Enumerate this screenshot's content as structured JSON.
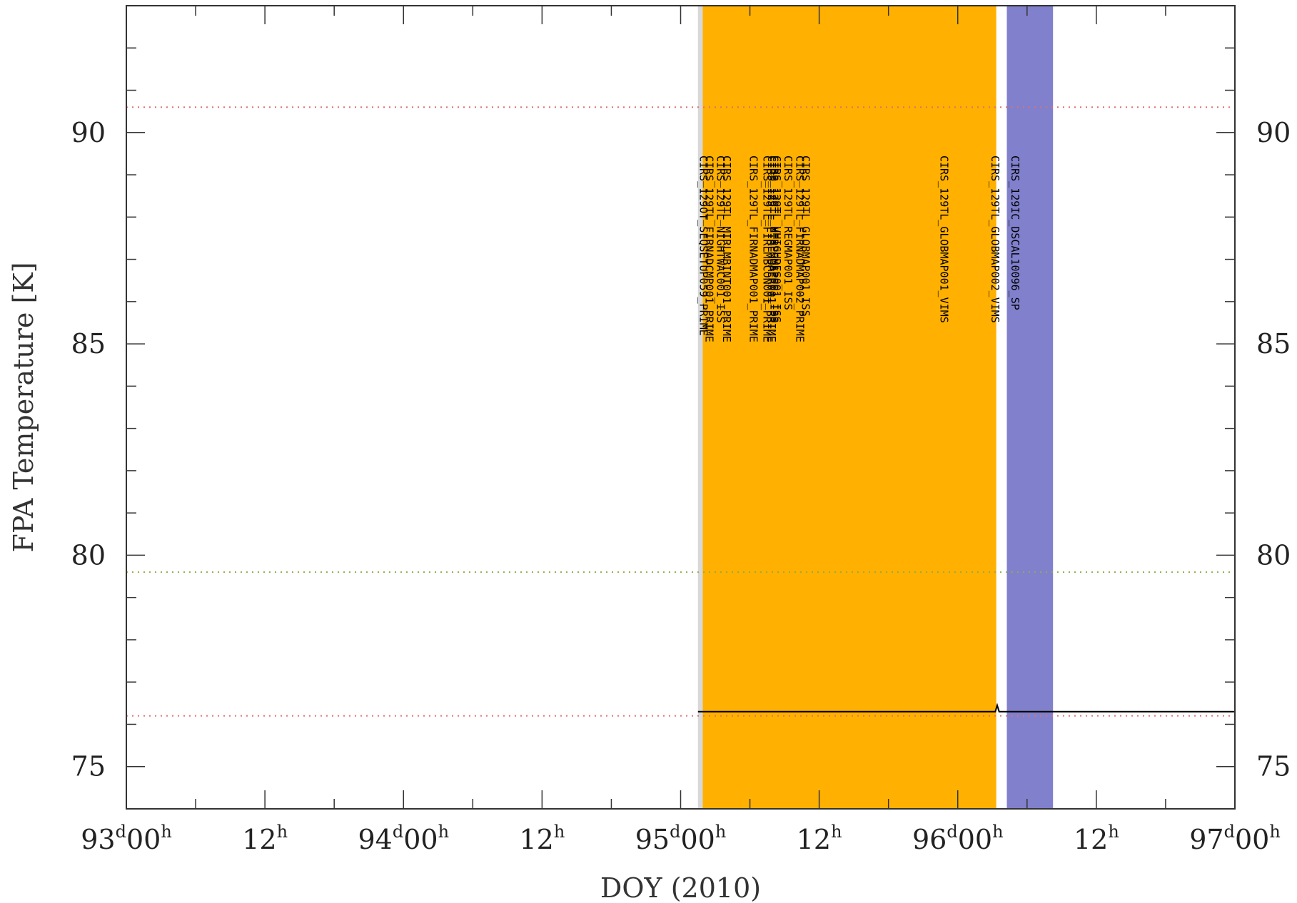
{
  "chart_data": {
    "type": "line",
    "title": "",
    "xlabel": "DOY (2010)",
    "ylabel": "FPA Temperature [K]",
    "xlim": [
      "2010-04-03T00:00",
      "2010-04-07T00:00"
    ],
    "ylim": [
      74,
      93
    ],
    "x_ticks": [
      {
        "x": "2010-04-03T00:00",
        "day": "93",
        "hour": "00",
        "label": "93d00h"
      },
      {
        "x": "2010-04-03T12:00",
        "day": "",
        "hour": "12",
        "label": "12h"
      },
      {
        "x": "2010-04-04T00:00",
        "day": "94",
        "hour": "00",
        "label": "94d00h"
      },
      {
        "x": "2010-04-04T12:00",
        "day": "",
        "hour": "12",
        "label": "12h"
      },
      {
        "x": "2010-04-05T00:00",
        "day": "95",
        "hour": "00",
        "label": "95d00h"
      },
      {
        "x": "2010-04-05T12:00",
        "day": "",
        "hour": "12",
        "label": "12h"
      },
      {
        "x": "2010-04-06T00:00",
        "day": "96",
        "hour": "00",
        "label": "96d00h"
      },
      {
        "x": "2010-04-06T12:00",
        "day": "",
        "hour": "12",
        "label": "12h"
      },
      {
        "x": "2010-04-07T00:00",
        "day": "97",
        "hour": "00",
        "label": "97d00h"
      }
    ],
    "y_ticks": [
      75,
      80,
      85,
      90
    ],
    "reference_lines": [
      {
        "y": 90.6,
        "color": "#e07070",
        "style": "dotted"
      },
      {
        "y": 79.6,
        "color": "#8fae4a",
        "style": "dotted"
      },
      {
        "y": 76.2,
        "color": "#e07070",
        "style": "dotted"
      }
    ],
    "bands": [
      {
        "x_start": "2010-04-05T01:30",
        "x_end": "2010-04-05T01:55",
        "color": "#d8d8d8"
      },
      {
        "x_start": "2010-04-05T01:55",
        "x_end": "2010-04-06T03:20",
        "color": "#ffb000"
      },
      {
        "x_start": "2010-04-06T04:15",
        "x_end": "2010-04-06T08:15",
        "color": "#8080cc"
      }
    ],
    "observations": [
      {
        "x": "2010-04-05T01:40",
        "label": "CIRS_129OT_SEQSETUP059_PRIME"
      },
      {
        "x": "2010-04-05T02:10",
        "label": "CIRS_129TL_FIRNADCMP001_PRIME"
      },
      {
        "x": "2010-04-05T03:10",
        "label": "CIRS_129TL_NIGHTWAC001_ISS"
      },
      {
        "x": "2010-04-05T03:40",
        "label": "CIRS_129TL_MIRLMBINT001_PRIME"
      },
      {
        "x": "2010-04-05T06:00",
        "label": "CIRS_129TL_FIRNADMAP001_PRIME"
      },
      {
        "x": "2010-04-05T07:10",
        "label": "CIRS_129TL_FIRLMBCON001_PRIME"
      },
      {
        "x": "2010-04-05T07:35",
        "label": "CIRS_129TL_FIRLMBAER001_PRIME"
      },
      {
        "x": "2010-04-05T07:48",
        "label": "CIRS_129TL_HIRESMAP001_ISS"
      },
      {
        "x": "2010-04-05T08:00",
        "label": "CIRS_129TL_VHIGHRES001_ISS"
      },
      {
        "x": "2010-04-05T09:00",
        "label": "CIRS_129TL_REGMAP001_ISS"
      },
      {
        "x": "2010-04-05T10:00",
        "label": "CIRS_129TL_FIRNADMAP002_PRIME"
      },
      {
        "x": "2010-04-05T10:30",
        "label": "CIRS_129TL_GLOBMAP001_ISS"
      },
      {
        "x": "2010-04-05T22:30",
        "label": "CIRS_129TL_GLOBMAP001_VIMS"
      },
      {
        "x": "2010-04-06T02:55",
        "label": "CIRS_129TL_GLOBMAP002_VIMS"
      },
      {
        "x": "2010-04-06T04:40",
        "label": "CIRS_129IC_DSCAL10096_SP"
      }
    ],
    "series": [
      {
        "color": "#000000",
        "x": [
          "2010-04-05T01:30",
          "2010-04-06T03:15",
          "2010-04-06T03:25",
          "2010-04-06T03:35",
          "2010-04-06T03:45",
          "2010-04-07T00:00"
        ],
        "y": [
          76.3,
          76.3,
          76.45,
          76.3,
          76.3,
          76.3
        ]
      }
    ],
    "grid": false,
    "legend": "none"
  },
  "colors": {
    "orange_band": "#ffb000",
    "blue_band": "#8080cc",
    "limit_red": "#e07070",
    "limit_green": "#8fae4a"
  }
}
